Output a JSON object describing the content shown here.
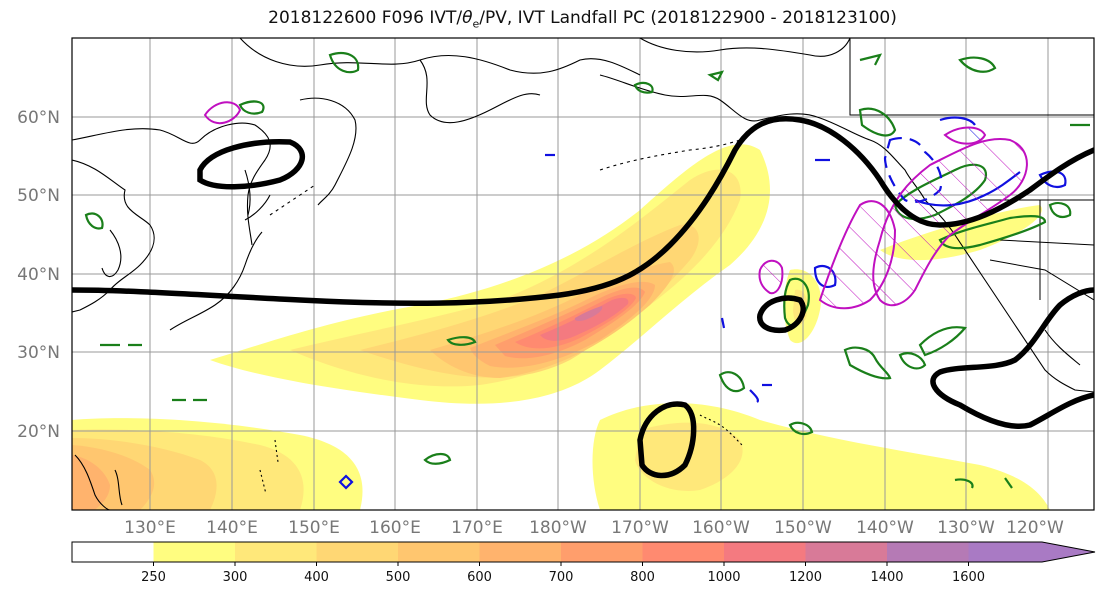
{
  "title": {
    "prefix": "2018122600 F096 IVT/",
    "theta": "θ",
    "theta_sub": "e",
    "suffix": "/PV, IVT Landfall PC (2018122900 - 2018123100)"
  },
  "lat_labels": [
    "60°N",
    "50°N",
    "40°N",
    "30°N",
    "20°N"
  ],
  "lon_labels": [
    "130°E",
    "140°E",
    "150°E",
    "160°E",
    "170°E",
    "180°W",
    "170°W",
    "160°W",
    "150°W",
    "140°W",
    "130°W",
    "120°W"
  ],
  "colorbar": {
    "ticks": [
      "250",
      "300",
      "400",
      "500",
      "600",
      "700",
      "800",
      "1000",
      "1200",
      "1400",
      "1600"
    ],
    "colors": [
      "#ffffff",
      "#fffd80",
      "#ffe87a",
      "#ffd774",
      "#ffc66f",
      "#ffb36d",
      "#ff9e6c",
      "#ff8a70",
      "#f47a80",
      "#d87a98",
      "#b57ab5",
      "#a97ac4"
    ]
  },
  "colors": {
    "jet": "#000000",
    "green_contour": "#1a7f1a",
    "blue_contour": "#1010e0",
    "magenta_contour": "#c010c0",
    "grid": "#999999"
  }
}
